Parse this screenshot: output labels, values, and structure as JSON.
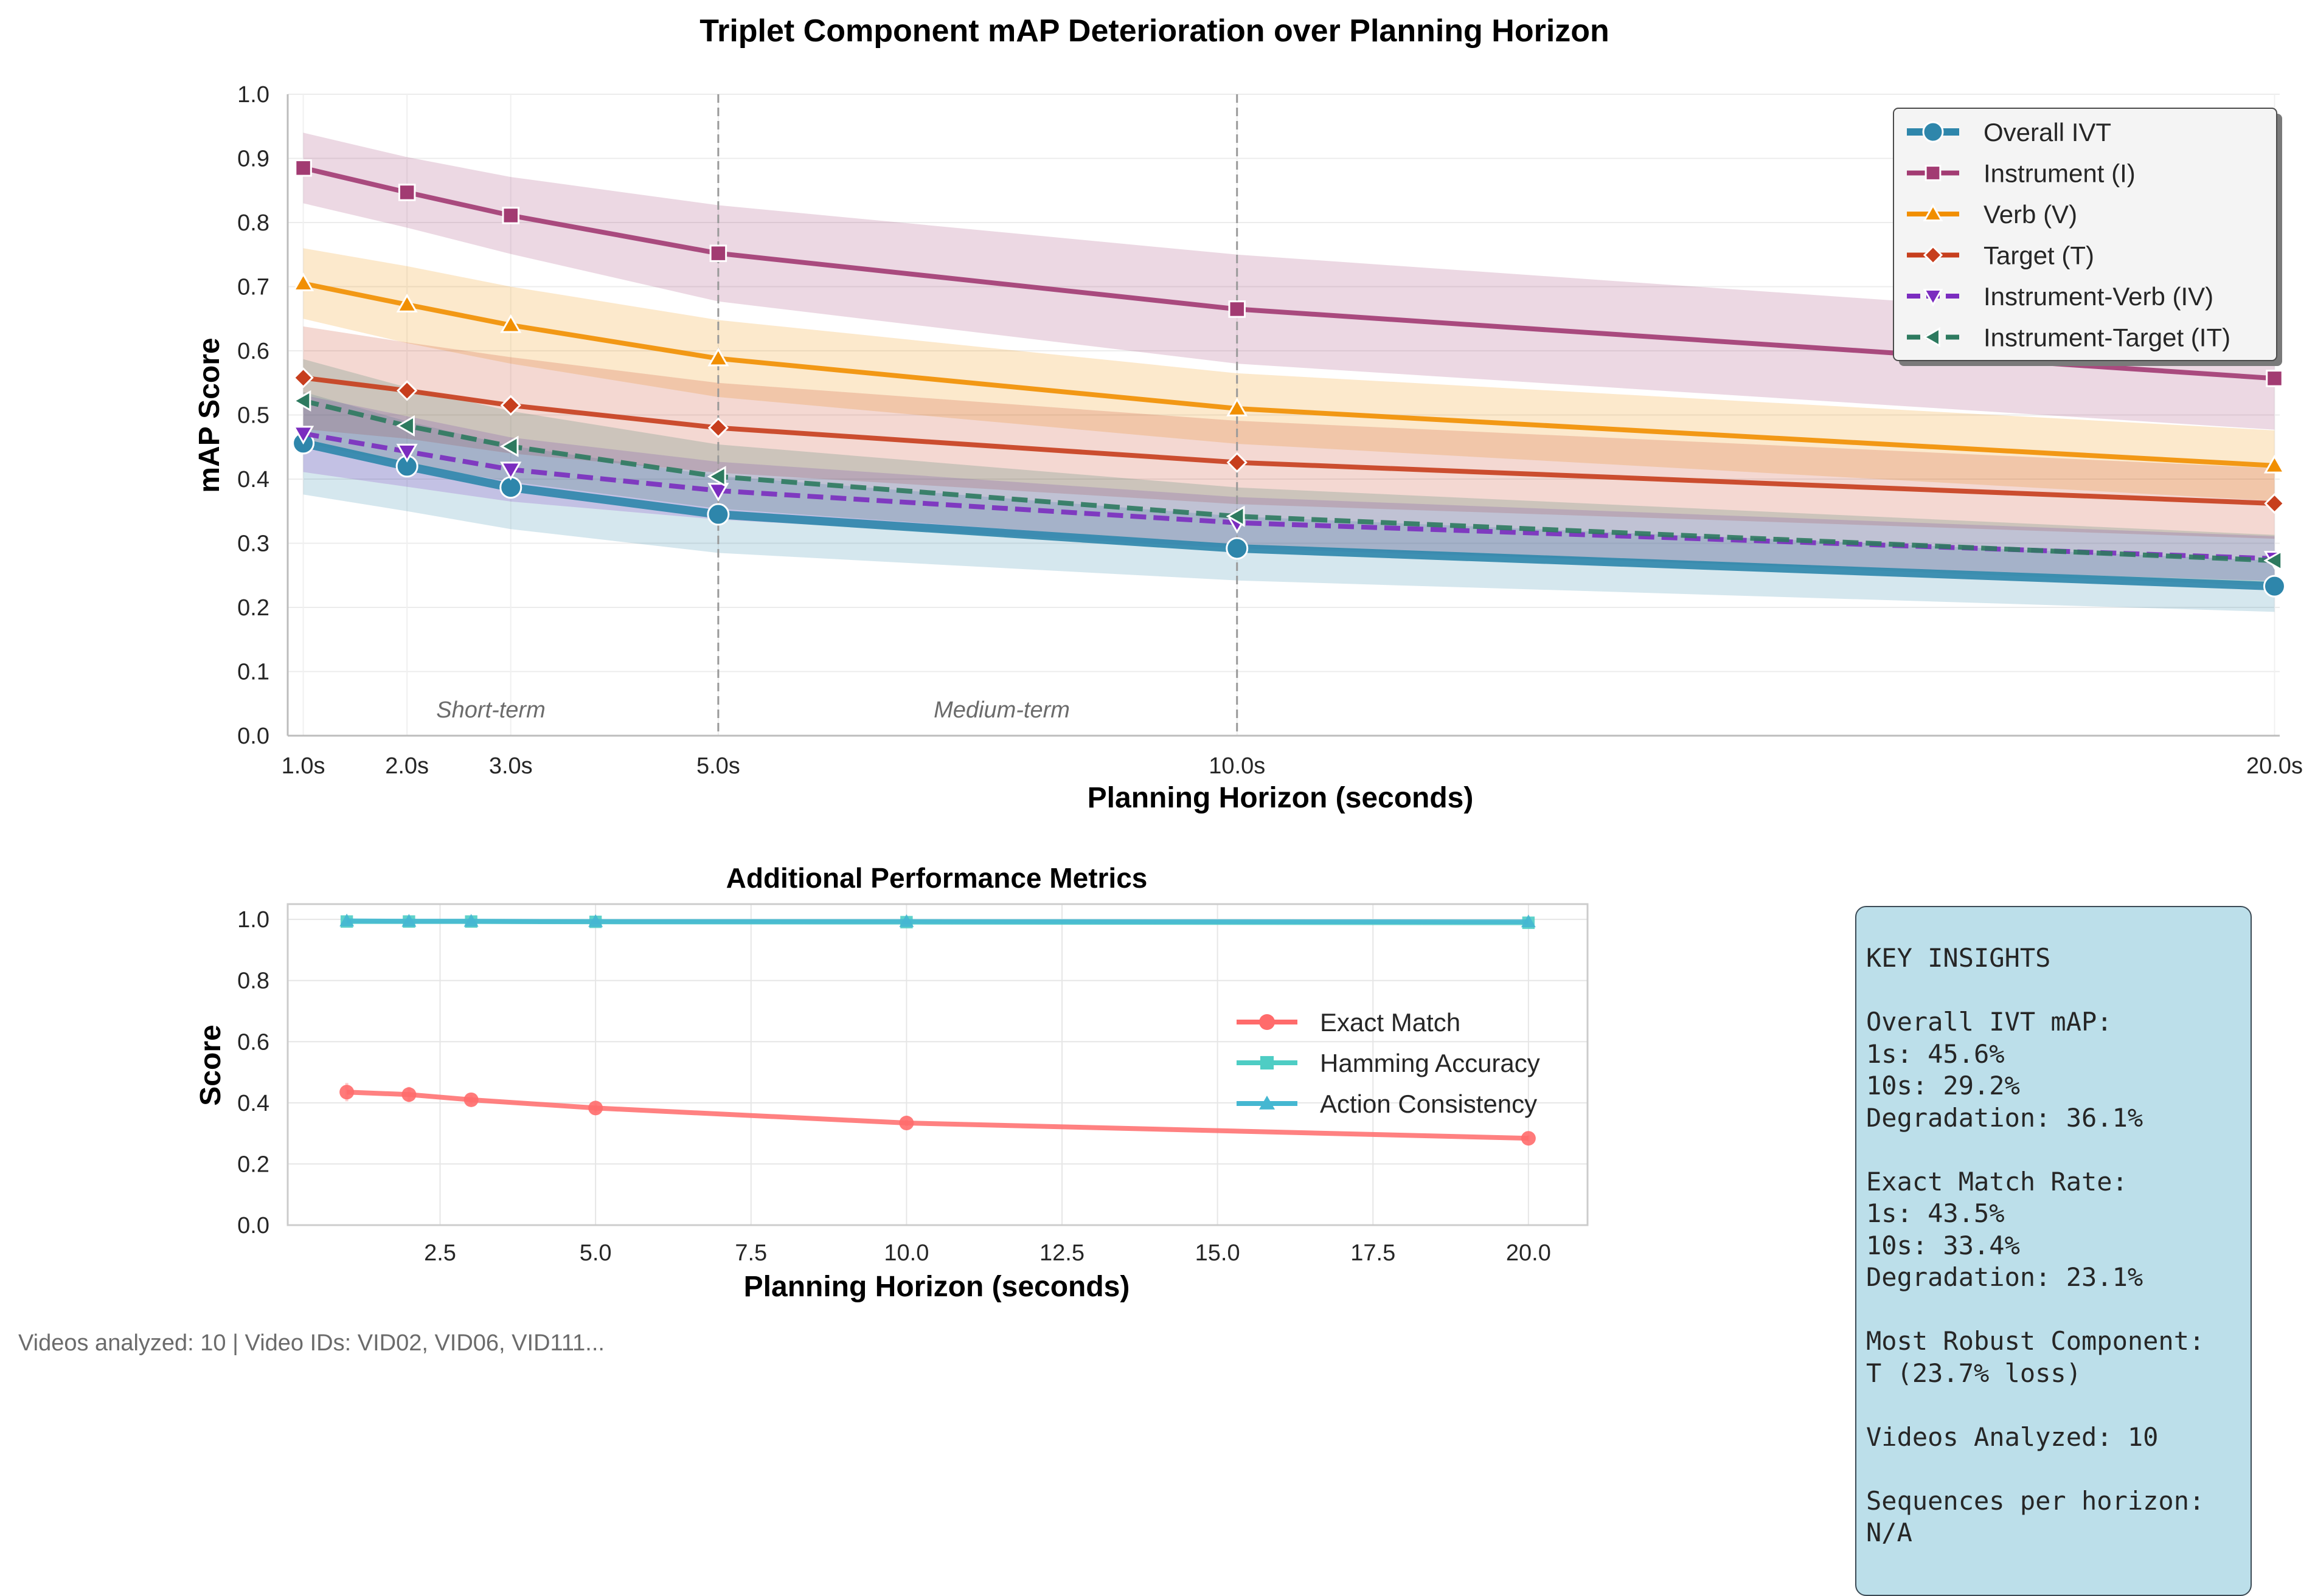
{
  "chart_data": [
    {
      "type": "line",
      "title": "Triplet Component mAP Deterioration over Planning Horizon",
      "xlabel": "Planning Horizon (seconds)",
      "ylabel": "mAP Score",
      "x": [
        1,
        2,
        3,
        5,
        10,
        20
      ],
      "x_tick_labels": [
        "1.0s",
        "2.0s",
        "3.0s",
        "5.0s",
        "10.0s",
        "20.0s"
      ],
      "ylim": [
        0,
        1
      ],
      "y_ticks": [
        "0.0",
        "0.1",
        "0.2",
        "0.3",
        "0.4",
        "0.5",
        "0.6",
        "0.7",
        "0.8",
        "0.9",
        "1.0"
      ],
      "vlines": [
        5,
        10
      ],
      "annotations": [
        "Short-term",
        "Medium-term"
      ],
      "grid": true,
      "legend_position": "top-right",
      "series": [
        {
          "name": "Overall IVT",
          "values": [
            0.456,
            0.42,
            0.387,
            0.345,
            0.292,
            0.233
          ],
          "band": [
            0.08,
            0.07,
            0.065,
            0.06,
            0.05,
            0.04
          ],
          "color": "#2e86ab",
          "marker": "circle",
          "style": "solid"
        },
        {
          "name": "Instrument (I)",
          "values": [
            0.885,
            0.847,
            0.811,
            0.752,
            0.665,
            0.557
          ],
          "band": [
            0.055,
            0.055,
            0.06,
            0.075,
            0.085,
            0.08
          ],
          "color": "#a23b72",
          "marker": "square",
          "style": "solid"
        },
        {
          "name": "Verb (V)",
          "values": [
            0.705,
            0.672,
            0.64,
            0.588,
            0.51,
            0.421
          ],
          "band": [
            0.055,
            0.06,
            0.06,
            0.06,
            0.055,
            0.055
          ],
          "color": "#f18f01",
          "marker": "triangle-up",
          "style": "solid"
        },
        {
          "name": "Target (T)",
          "values": [
            0.558,
            0.538,
            0.515,
            0.48,
            0.426,
            0.362
          ],
          "band": [
            0.08,
            0.075,
            0.075,
            0.07,
            0.065,
            0.055
          ],
          "color": "#c73e1d",
          "marker": "diamond",
          "style": "solid"
        },
        {
          "name": "Instrument-Verb (IV)",
          "values": [
            0.471,
            0.443,
            0.415,
            0.382,
            0.332,
            0.276
          ],
          "band": [
            0.06,
            0.055,
            0.05,
            0.045,
            0.04,
            0.035
          ],
          "color": "#7b2cbf",
          "marker": "triangle-down",
          "style": "dashed"
        },
        {
          "name": "Instrument-Target (IT)",
          "values": [
            0.522,
            0.483,
            0.451,
            0.404,
            0.342,
            0.273
          ],
          "band": [
            0.065,
            0.06,
            0.055,
            0.05,
            0.045,
            0.04
          ],
          "color": "#2d7a5f",
          "marker": "triangle-left",
          "style": "dashed"
        }
      ]
    },
    {
      "type": "line",
      "title": "Additional Performance Metrics",
      "xlabel": "Planning Horizon (seconds)",
      "ylabel": "Score",
      "x": [
        1,
        2,
        3,
        5,
        10,
        20
      ],
      "xlim": [
        0.05,
        20.95
      ],
      "x_ticks": [
        "2.5",
        "5.0",
        "7.5",
        "10.0",
        "12.5",
        "15.0",
        "17.5",
        "20.0"
      ],
      "ylim": [
        0,
        1.05
      ],
      "y_ticks": [
        "0.0",
        "0.2",
        "0.4",
        "0.6",
        "0.8",
        "1.0"
      ],
      "grid": true,
      "legend_position": "center-right",
      "series": [
        {
          "name": "Exact Match",
          "values": [
            0.435,
            0.427,
            0.41,
            0.383,
            0.334,
            0.284
          ],
          "err": [
            0.03,
            0.025,
            0.015,
            0.015,
            0.01,
            0.01
          ],
          "color": "#ff6b6b",
          "marker": "circle"
        },
        {
          "name": "Hamming Accuracy",
          "values": [
            0.993,
            0.993,
            0.993,
            0.992,
            0.991,
            0.989
          ],
          "color": "#4ecdc4",
          "marker": "square"
        },
        {
          "name": "Action Consistency",
          "values": [
            0.995,
            0.994,
            0.994,
            0.993,
            0.993,
            0.992
          ],
          "color": "#45b7d1",
          "marker": "triangle-up"
        }
      ]
    }
  ],
  "insights": "KEY INSIGHTS\n\nOverall IVT mAP:\n1s: 45.6%\n10s: 29.2%\nDegradation: 36.1%\n\nExact Match Rate:\n1s: 43.5%\n10s: 33.4%\nDegradation: 23.1%\n\nMost Robust Component:\nT (23.7% loss)\n\nVideos Analyzed: 10\n\nSequences per horizon:\nN/A",
  "footer": "Videos analyzed: 10 | Video IDs: VID02, VID06, VID111..."
}
